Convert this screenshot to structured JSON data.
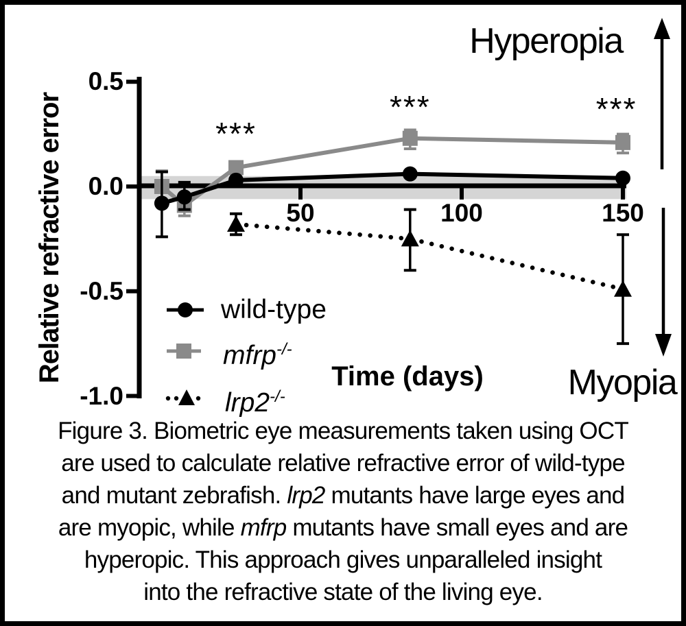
{
  "chart_data": {
    "type": "line",
    "title": "",
    "xlabel": "Time (days)",
    "ylabel": "Relative refractive error",
    "xlim": [
      0,
      151
    ],
    "ylim": [
      -1.0,
      0.5
    ],
    "x_ticks": [
      50,
      100,
      150
    ],
    "x_tick_labels": [
      "50",
      "100",
      "150"
    ],
    "y_ticks": [
      0.5,
      0.0,
      -0.5,
      -1.0
    ],
    "y_tick_labels": [
      "0.5",
      "0.0",
      "-0.5",
      "-1.0"
    ],
    "grid": false,
    "legend_position": "lower-left",
    "normal_band": {
      "lo": -0.06,
      "hi": 0.05,
      "color": "#d5d5d5"
    },
    "annotations": {
      "up": "Hyperopia",
      "down": "Myopia"
    },
    "series": [
      {
        "name": "wild-type",
        "marker": "circle",
        "line": "solid",
        "color": "#000000",
        "x": [
          7,
          14,
          30,
          84,
          150
        ],
        "y": [
          -0.08,
          -0.05,
          0.03,
          0.06,
          0.04
        ],
        "err_lo": [
          -0.24,
          -0.11,
          null,
          null,
          null
        ],
        "err_hi": [
          0.07,
          0.02,
          null,
          null,
          null
        ]
      },
      {
        "name": "mfrp-/-",
        "marker": "square",
        "line": "solid",
        "color": "#8a8a8a",
        "x": [
          7,
          14,
          30,
          84,
          150
        ],
        "y": [
          0.0,
          -0.09,
          0.09,
          0.23,
          0.21
        ],
        "err_lo": [
          -0.085,
          -0.14,
          null,
          0.18,
          0.16
        ],
        "err_hi": [
          0.075,
          -0.05,
          null,
          0.27,
          0.25
        ]
      },
      {
        "name": "lrp2-/-",
        "marker": "triangle",
        "line": "dotted",
        "color": "#000000",
        "x": [
          30,
          84,
          150
        ],
        "y": [
          -0.18,
          -0.25,
          -0.49
        ],
        "err_lo": [
          -0.23,
          -0.4,
          -0.75
        ],
        "err_hi": [
          -0.13,
          -0.11,
          -0.23
        ]
      }
    ],
    "significance": [
      {
        "x": 30,
        "y": 0.28,
        "text": "***"
      },
      {
        "x": 84,
        "y": 0.41,
        "text": "***"
      },
      {
        "x": 148,
        "y": 0.4,
        "text": "***"
      }
    ]
  },
  "legend": {
    "items": [
      {
        "label": "wild-type",
        "sup": "",
        "italic": false,
        "marker": "circle",
        "color": "#000000",
        "line": "solid"
      },
      {
        "label": "mfrp",
        "sup": "-/-",
        "italic": true,
        "marker": "square",
        "color": "#8a8a8a",
        "line": "solid"
      },
      {
        "label": "lrp2",
        "sup": "-/-",
        "italic": true,
        "marker": "triangle",
        "color": "#000000",
        "line": "dotted"
      }
    ]
  },
  "caption": {
    "lines": [
      [
        {
          "t": "Figure 3. Biometric eye measurements taken using OCT"
        }
      ],
      [
        {
          "t": "are used to calculate relative refractive error of wild-type"
        }
      ],
      [
        {
          "t": "and mutant zebrafish. "
        },
        {
          "t": "lrp2",
          "i": true
        },
        {
          "t": " mutants have large eyes and"
        }
      ],
      [
        {
          "t": "are myopic, while "
        },
        {
          "t": "mfrp",
          "i": true
        },
        {
          "t": " mutants have small eyes and are"
        }
      ],
      [
        {
          "t": "hyperopic.  This approach gives unparalleled insight"
        }
      ],
      [
        {
          "t": "into the refractive state of the living eye."
        }
      ]
    ]
  }
}
